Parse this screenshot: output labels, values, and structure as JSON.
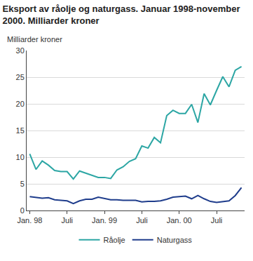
{
  "chart_data": {
    "type": "line",
    "title": "Eksport av råolje og naturgass. Januar 1998-november 2000. Milliarder kroner",
    "y_label": "Milliarder kroner",
    "categories": [
      "Jan. 98",
      null,
      null,
      null,
      null,
      null,
      "Juli",
      null,
      null,
      null,
      null,
      null,
      "Jan. 99",
      null,
      null,
      null,
      null,
      null,
      "Juli",
      null,
      null,
      null,
      null,
      null,
      "Jan. 00",
      null,
      null,
      null,
      null,
      null,
      "Juli",
      null,
      null,
      null,
      null
    ],
    "series": [
      {
        "name": "Råolje",
        "color": "#2ca6a4",
        "values": [
          10.6,
          7.7,
          9.3,
          8.5,
          7.5,
          7.3,
          7.3,
          5.9,
          7.4,
          7.0,
          6.7,
          6.2,
          6.2,
          6.0,
          7.6,
          8.2,
          9.2,
          9.7,
          12.1,
          11.7,
          13.7,
          12.7,
          17.8,
          18.8,
          18.2,
          18.2,
          19.9,
          16.5,
          21.9,
          19.8,
          22.5,
          25.1,
          23.2,
          26.3,
          27.0
        ]
      },
      {
        "name": "Naturgass",
        "color": "#1f3d8c",
        "values": [
          2.6,
          2.4,
          2.3,
          2.4,
          2.0,
          1.9,
          1.8,
          1.3,
          1.8,
          2.1,
          2.1,
          2.5,
          2.2,
          2.0,
          2.0,
          1.9,
          1.9,
          1.9,
          1.6,
          1.7,
          1.7,
          1.8,
          2.1,
          2.5,
          2.6,
          2.7,
          2.2,
          2.8,
          2.2,
          1.7,
          1.5,
          1.7,
          1.8,
          2.8,
          4.3
        ]
      }
    ],
    "ylim": [
      0,
      30
    ],
    "yticks": [
      0,
      5,
      10,
      15,
      20,
      25,
      30
    ],
    "grid": true,
    "legend": "bottom"
  }
}
